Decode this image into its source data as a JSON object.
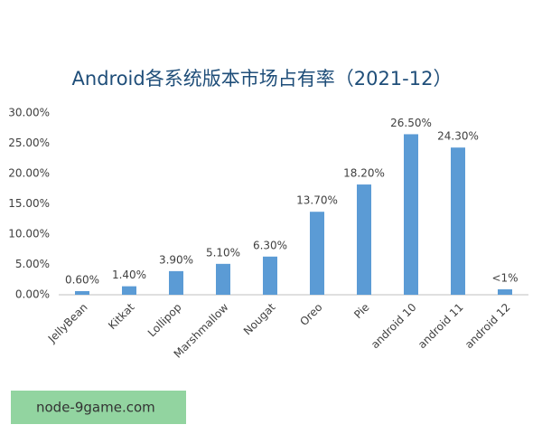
{
  "chart_data": {
    "type": "bar",
    "title": "Android各系统版本市场占有率（2021-12）",
    "categories": [
      "JellyBean",
      "Kitkat",
      "Lollipop",
      "Marshmallow",
      "Nougat",
      "Oreo",
      "Pie",
      "android 10",
      "android 11",
      "android 12"
    ],
    "values": [
      0.6,
      1.4,
      3.9,
      5.1,
      6.3,
      13.7,
      18.2,
      26.5,
      24.3,
      0.9
    ],
    "value_labels": [
      "0.60%",
      "1.40%",
      "3.90%",
      "5.10%",
      "6.30%",
      "13.70%",
      "18.20%",
      "26.50%",
      "24.30%",
      "<1%"
    ],
    "color": "#5b9bd5",
    "ylim": [
      0,
      30
    ],
    "yticks": [
      {
        "value": 0,
        "label": "0.00%"
      },
      {
        "value": 5,
        "label": "5.00%"
      },
      {
        "value": 10,
        "label": "10.00%"
      },
      {
        "value": 15,
        "label": "15.00%"
      },
      {
        "value": 20,
        "label": "20.00%"
      },
      {
        "value": 25,
        "label": "25.00%"
      },
      {
        "value": 30,
        "label": "30.00%"
      }
    ],
    "grid": false
  },
  "watermark": "node-9game.com"
}
